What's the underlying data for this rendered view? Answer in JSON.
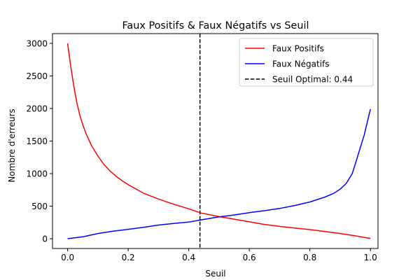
{
  "chart_data": {
    "type": "line",
    "title": "Faux Positifs & Faux Négatifs vs Seuil",
    "xlabel": "Seuil",
    "ylabel": "Nombre d'erreurs",
    "xlim": [
      -0.05,
      1.025
    ],
    "ylim": [
      -150,
      3150
    ],
    "xticks": [
      0.0,
      0.2,
      0.4,
      0.6,
      0.8,
      1.0
    ],
    "xtick_labels": [
      "0.0",
      "0.2",
      "0.4",
      "0.6",
      "0.8",
      "1.0"
    ],
    "yticks": [
      0,
      500,
      1000,
      1500,
      2000,
      2500,
      3000
    ],
    "ytick_labels": [
      "0",
      "500",
      "1000",
      "1500",
      "2000",
      "2500",
      "3000"
    ],
    "grid": false,
    "legend_position": "top-right",
    "series": [
      {
        "name": "Faux Positifs",
        "color": "#ff0000",
        "x": [
          0.0,
          0.01,
          0.02,
          0.03,
          0.04,
          0.05,
          0.06,
          0.08,
          0.1,
          0.12,
          0.14,
          0.16,
          0.18,
          0.2,
          0.25,
          0.3,
          0.35,
          0.4,
          0.44,
          0.5,
          0.55,
          0.6,
          0.65,
          0.7,
          0.75,
          0.8,
          0.85,
          0.9,
          0.95,
          1.0
        ],
        "y": [
          3000,
          2650,
          2350,
          2100,
          1900,
          1750,
          1620,
          1420,
          1270,
          1140,
          1040,
          960,
          890,
          830,
          700,
          610,
          530,
          460,
          395,
          340,
          300,
          260,
          220,
          190,
          165,
          140,
          110,
          80,
          45,
          5
        ]
      },
      {
        "name": "Faux Négatifs",
        "color": "#0000ff",
        "x": [
          0.0,
          0.05,
          0.1,
          0.15,
          0.2,
          0.25,
          0.3,
          0.35,
          0.4,
          0.44,
          0.5,
          0.55,
          0.6,
          0.65,
          0.7,
          0.75,
          0.8,
          0.85,
          0.88,
          0.9,
          0.92,
          0.94,
          0.95,
          0.96,
          0.97,
          0.98,
          0.99,
          1.0
        ],
        "y": [
          0,
          30,
          80,
          115,
          145,
          175,
          210,
          235,
          255,
          290,
          335,
          365,
          400,
          430,
          465,
          510,
          565,
          640,
          700,
          760,
          850,
          1000,
          1150,
          1300,
          1450,
          1600,
          1800,
          1990
        ]
      },
      {
        "name": "Seuil Optimal: 0.44",
        "color": "#000000",
        "vline_x": 0.437,
        "dashed": true
      }
    ]
  }
}
